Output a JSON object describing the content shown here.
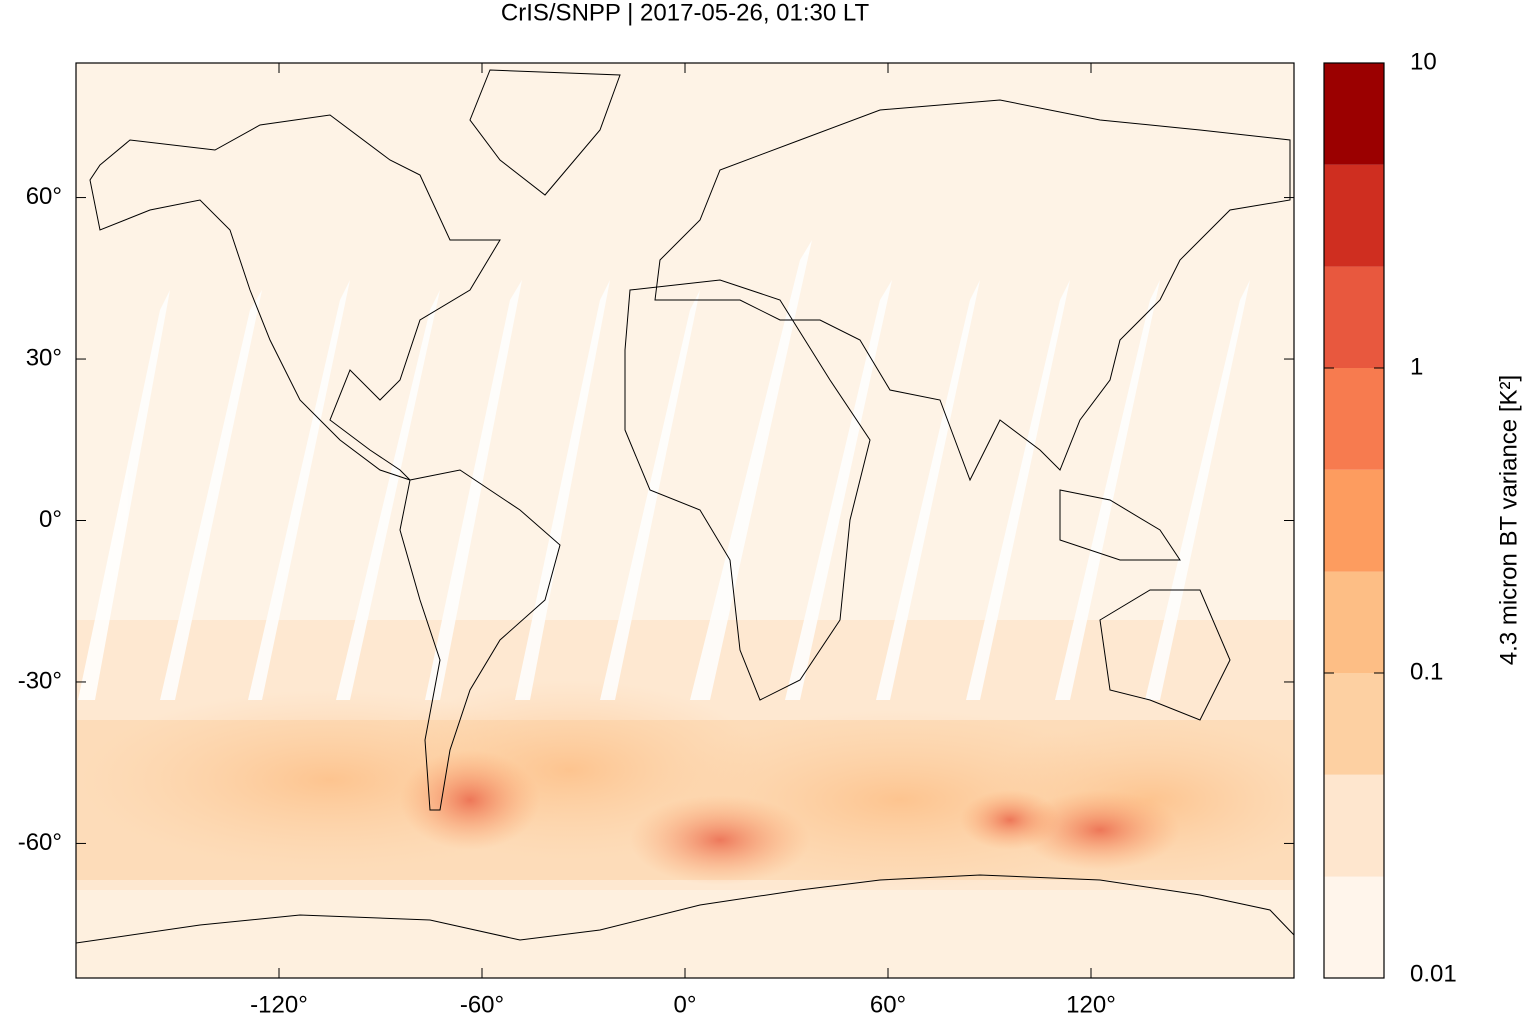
{
  "chart_data": {
    "type": "map",
    "title": "CrIS/SNPP | 2017-05-26, 01:30 LT",
    "xlim": [
      -180,
      180
    ],
    "ylim": [
      -85,
      85
    ],
    "xticks": [
      {
        "value": -120,
        "label": "-120°"
      },
      {
        "value": -60,
        "label": "-60°"
      },
      {
        "value": 0,
        "label": "0°"
      },
      {
        "value": 60,
        "label": "60°"
      },
      {
        "value": 120,
        "label": "120°"
      }
    ],
    "yticks": [
      {
        "value": -60,
        "label": "-60°"
      },
      {
        "value": -30,
        "label": "-30°"
      },
      {
        "value": 0,
        "label": "0°"
      },
      {
        "value": 30,
        "label": "30°"
      },
      {
        "value": 60,
        "label": "60°"
      }
    ],
    "colorbar": {
      "label": "4.3 micron BT variance [K²]",
      "log": true,
      "lim": [
        0.01,
        10
      ],
      "ticks": [
        0.01,
        0.1,
        1,
        10
      ],
      "levels": [
        0.01,
        0.0215,
        0.0464,
        0.1,
        0.215,
        0.464,
        1,
        2.15,
        4.64,
        10
      ],
      "colors": [
        "#fff5eb",
        "#fee6ce",
        "#fdd0a2",
        "#fdbe85",
        "#fd9c5f",
        "#f77b4f",
        "#e8583e",
        "#cf2e20",
        "#9b0000"
      ]
    }
  }
}
